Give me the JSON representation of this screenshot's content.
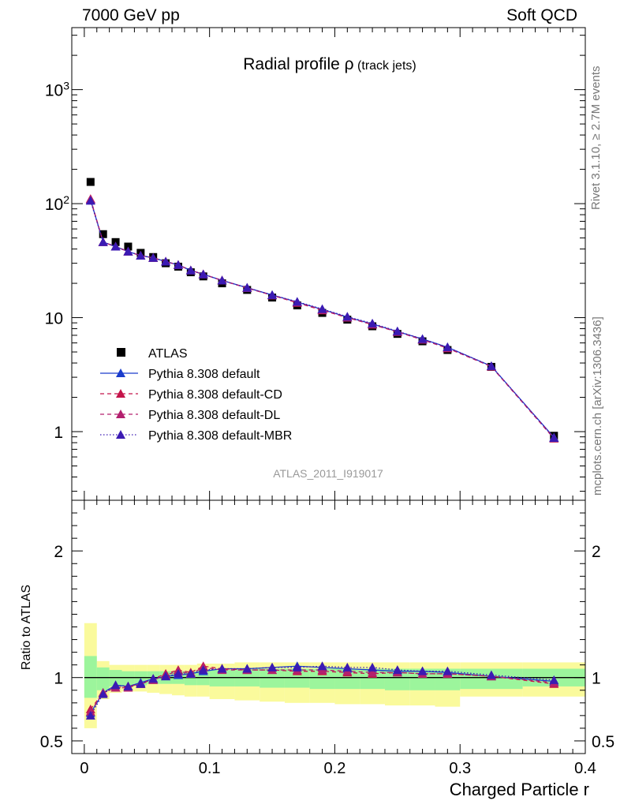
{
  "header": {
    "left": "7000 GeV pp",
    "right": "Soft QCD"
  },
  "side_labels": {
    "rivet": "Rivet 3.1.10, ≥ 2.7M events",
    "mcplots": "mcplots.cern.ch [arXiv:1306.3436]"
  },
  "chart_data": [
    {
      "type": "line",
      "title": "Radial profile",
      "title_symbol": "ρ",
      "title_suffix": "(track jets)",
      "watermark": "ATLAS_2011_I919017",
      "yscale": "log",
      "ylim": [
        0.25,
        3500
      ],
      "xlim": [
        -0.01,
        0.4
      ],
      "y_ticks": [
        {
          "value": 1000,
          "label": "10",
          "sup": "3"
        },
        {
          "value": 100,
          "label": "10",
          "sup": "2"
        },
        {
          "value": 10,
          "label": "10"
        },
        {
          "value": 1,
          "label": "1"
        }
      ],
      "legend_position": "bottom-left",
      "x": [
        0.005,
        0.015,
        0.025,
        0.035,
        0.045,
        0.055,
        0.065,
        0.075,
        0.085,
        0.095,
        0.11,
        0.13,
        0.15,
        0.17,
        0.19,
        0.21,
        0.23,
        0.25,
        0.27,
        0.29,
        0.325,
        0.375
      ],
      "series": [
        {
          "name": "ATLAS",
          "style": "marker",
          "color": "#000000",
          "values": [
            155,
            54,
            46,
            42,
            37,
            34,
            30,
            28,
            25,
            23,
            20,
            17.5,
            15,
            12.8,
            11,
            9.6,
            8.4,
            7.2,
            6.2,
            5.2,
            3.7,
            0.92
          ]
        },
        {
          "name": "Pythia 8.308 default",
          "style": "solid",
          "color": "#1a3ccc",
          "values": [
            108,
            46,
            42,
            38,
            35,
            33.5,
            31,
            29,
            26,
            24,
            21.2,
            18.3,
            15.8,
            13.7,
            11.8,
            10.1,
            8.8,
            7.55,
            6.5,
            5.5,
            3.75,
            0.89
          ]
        },
        {
          "name": "Pythia 8.308 default-CD",
          "style": "dashed",
          "color": "#c4144a",
          "values": [
            110,
            46,
            42,
            38,
            35,
            33.5,
            31,
            29,
            26,
            24,
            21.2,
            18.2,
            15.7,
            13.5,
            11.6,
            10,
            8.7,
            7.5,
            6.4,
            5.4,
            3.72,
            0.87
          ]
        },
        {
          "name": "Pythia 8.308 default-DL",
          "style": "dashed",
          "color": "#b3206e",
          "values": [
            109,
            46,
            42,
            38,
            35,
            33.5,
            31,
            29,
            26,
            24,
            21.2,
            18.2,
            15.7,
            13.6,
            11.7,
            10,
            8.7,
            7.5,
            6.4,
            5.4,
            3.73,
            0.88
          ]
        },
        {
          "name": "Pythia 8.308 default-MBR",
          "style": "dotted",
          "color": "#3b1ab3",
          "values": [
            106,
            46,
            42,
            38,
            35,
            33.5,
            31,
            29,
            26,
            24,
            21.2,
            18.3,
            15.8,
            13.8,
            11.9,
            10.2,
            8.9,
            7.6,
            6.5,
            5.5,
            3.76,
            0.88
          ]
        }
      ]
    },
    {
      "type": "line",
      "ylabel": "Ratio to ATLAS",
      "xlabel": "Charged Particle r",
      "ylim": [
        0.4,
        2.4
      ],
      "xlim": [
        -0.01,
        0.4
      ],
      "y_ticks": [
        {
          "value": 0.5,
          "label": "0.5"
        },
        {
          "value": 1,
          "label": "1"
        },
        {
          "value": 2,
          "label": "2"
        }
      ],
      "x_ticks": [
        {
          "value": 0,
          "label": "0"
        },
        {
          "value": 0.1,
          "label": "0.1"
        },
        {
          "value": 0.2,
          "label": "0.2"
        },
        {
          "value": 0.3,
          "label": "0.3"
        },
        {
          "value": 0.4,
          "label": "0.4"
        }
      ],
      "bands": {
        "bin_edges": [
          0,
          0.01,
          0.02,
          0.03,
          0.04,
          0.05,
          0.06,
          0.07,
          0.08,
          0.09,
          0.1,
          0.12,
          0.14,
          0.16,
          0.18,
          0.2,
          0.22,
          0.24,
          0.26,
          0.28,
          0.3,
          0.35,
          0.4
        ],
        "inner_color": "#9cf59c",
        "outer_color": "#fafa9c",
        "inner_low": [
          0.84,
          0.9,
          0.93,
          0.93,
          0.94,
          0.95,
          0.95,
          0.95,
          0.94,
          0.94,
          0.93,
          0.93,
          0.92,
          0.92,
          0.91,
          0.91,
          0.91,
          0.9,
          0.9,
          0.9,
          0.91,
          0.93
        ],
        "inner_high": [
          1.17,
          1.08,
          1.06,
          1.05,
          1.05,
          1.05,
          1.05,
          1.05,
          1.05,
          1.06,
          1.06,
          1.07,
          1.07,
          1.07,
          1.07,
          1.07,
          1.07,
          1.07,
          1.07,
          1.07,
          1.07,
          1.07
        ],
        "outer_low": [
          0.6,
          0.83,
          0.88,
          0.89,
          0.89,
          0.88,
          0.87,
          0.86,
          0.85,
          0.85,
          0.83,
          0.82,
          0.81,
          0.8,
          0.8,
          0.79,
          0.79,
          0.78,
          0.78,
          0.77,
          0.85,
          0.85
        ],
        "outer_high": [
          1.43,
          1.13,
          1.1,
          1.1,
          1.1,
          1.1,
          1.1,
          1.1,
          1.1,
          1.11,
          1.11,
          1.12,
          1.12,
          1.12,
          1.12,
          1.12,
          1.12,
          1.12,
          1.12,
          1.12,
          1.12,
          1.12
        ]
      },
      "x": [
        0.005,
        0.015,
        0.025,
        0.035,
        0.045,
        0.055,
        0.065,
        0.075,
        0.085,
        0.095,
        0.11,
        0.13,
        0.15,
        0.17,
        0.19,
        0.21,
        0.23,
        0.25,
        0.27,
        0.29,
        0.325,
        0.375
      ],
      "series": [
        {
          "name": "Pythia 8.308 default",
          "style": "solid",
          "color": "#1a3ccc",
          "values": [
            0.72,
            0.88,
            0.94,
            0.93,
            0.96,
            0.99,
            1.01,
            1.02,
            1.03,
            1.05,
            1.07,
            1.07,
            1.08,
            1.09,
            1.08,
            1.07,
            1.06,
            1.05,
            1.05,
            1.04,
            1.01,
            0.97
          ]
        },
        {
          "name": "Pythia 8.308 default-CD",
          "style": "dashed",
          "color": "#c4144a",
          "values": [
            0.75,
            0.88,
            0.92,
            0.93,
            0.95,
            0.99,
            1.03,
            1.06,
            1.04,
            1.09,
            1.07,
            1.06,
            1.06,
            1.05,
            1.05,
            1.04,
            1.03,
            1.04,
            1.03,
            1.03,
            1.01,
            0.95
          ]
        },
        {
          "name": "Pythia 8.308 default-DL",
          "style": "dashed",
          "color": "#b3206e",
          "values": [
            0.73,
            0.88,
            0.92,
            0.92,
            0.95,
            0.98,
            1.02,
            1.05,
            1.03,
            1.08,
            1.06,
            1.06,
            1.06,
            1.06,
            1.06,
            1.05,
            1.04,
            1.04,
            1.03,
            1.03,
            1.01,
            0.96
          ]
        },
        {
          "name": "Pythia 8.308 default-MBR",
          "style": "dotted",
          "color": "#3b1ab3",
          "values": [
            0.7,
            0.87,
            0.94,
            0.93,
            0.95,
            0.99,
            1.01,
            1.03,
            1.03,
            1.06,
            1.07,
            1.07,
            1.08,
            1.08,
            1.09,
            1.08,
            1.08,
            1.06,
            1.05,
            1.05,
            1.02,
            0.98
          ]
        }
      ]
    }
  ]
}
